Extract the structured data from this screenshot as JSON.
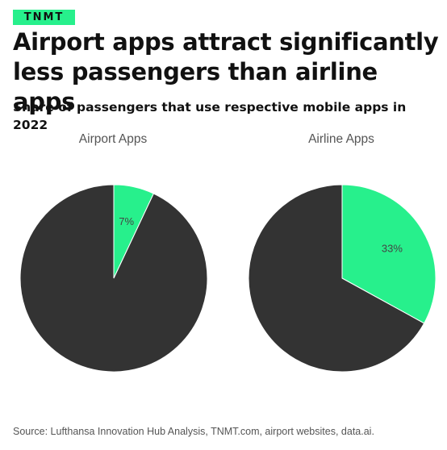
{
  "brand": "TNMT",
  "title": "Airport apps attract significantly less passengers than airline apps",
  "subtitle": "Share of passengers that use respective mobile apps in 2022",
  "source": "Source: Lufthansa Innovation Hub Analysis, TNMT.com, airport websites, data.ai.",
  "colors": {
    "accent": "#27f08c",
    "rest": "#333333"
  },
  "chart_data": [
    {
      "type": "pie",
      "title": "Airport Apps",
      "slices": [
        {
          "value": 7,
          "label": "7%",
          "color": "#27f08c"
        },
        {
          "value": 93,
          "label": "",
          "color": "#333333"
        }
      ]
    },
    {
      "type": "pie",
      "title": "Airline Apps",
      "slices": [
        {
          "value": 33,
          "label": "33%",
          "color": "#27f08c"
        },
        {
          "value": 67,
          "label": "",
          "color": "#333333"
        }
      ]
    }
  ]
}
